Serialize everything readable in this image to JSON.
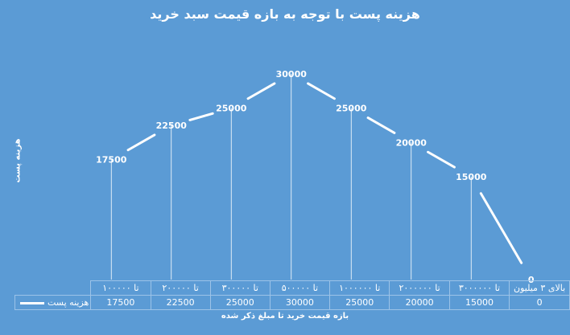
{
  "chart_data": {
    "type": "line",
    "title": "هزینه پست با توجه به بازه قیمت سبد خرید",
    "xlabel": "بازه قیمت خرید تا مبلغ ذکر شده",
    "ylabel": "هزینه پست",
    "categories": [
      "تا ۱۰۰۰۰۰",
      "تا ۲۰۰۰۰۰",
      "تا ۳۰۰۰۰۰",
      "تا ۵۰۰۰۰۰",
      "تا ۱۰۰۰۰۰۰",
      "تا ۲۰۰۰۰۰۰",
      "تا ۳۰۰۰۰۰۰",
      "بالای ۳ میلیون"
    ],
    "series": [
      {
        "name": "هزینه پست",
        "values": [
          17500,
          22500,
          25000,
          30000,
          25000,
          20000,
          15000,
          0
        ]
      }
    ],
    "ylim": [
      0,
      30000
    ],
    "grid": false,
    "legend": "bottom-left (in data table)",
    "colors": {
      "background": "#5b9bd5",
      "line": "#ffffff",
      "text": "#ffffff"
    }
  }
}
